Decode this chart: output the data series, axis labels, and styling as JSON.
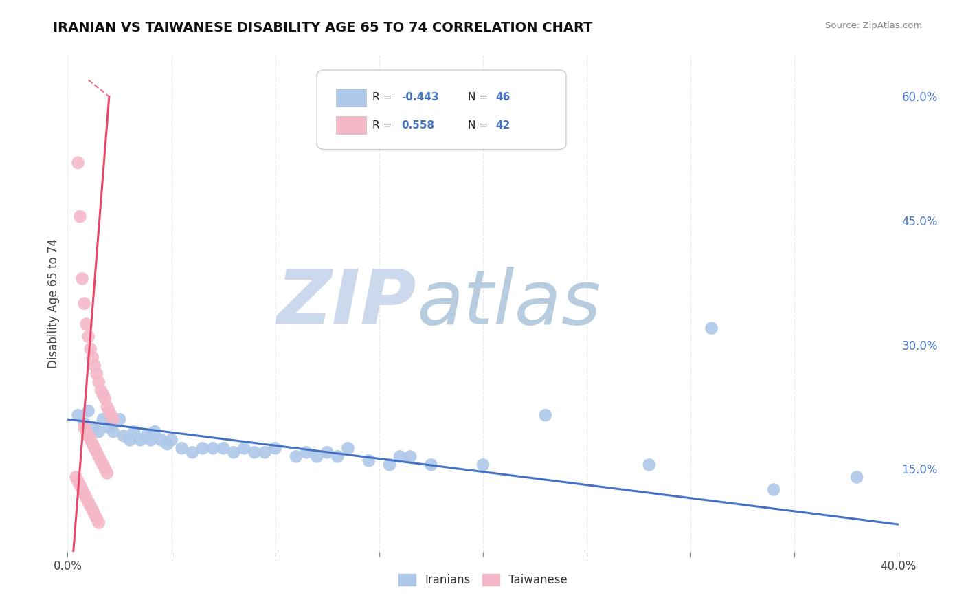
{
  "title": "IRANIAN VS TAIWANESE DISABILITY AGE 65 TO 74 CORRELATION CHART",
  "source_text": "Source: ZipAtlas.com",
  "ylabel": "Disability Age 65 to 74",
  "xlim": [
    0.0,
    0.4
  ],
  "ylim": [
    0.05,
    0.65
  ],
  "iranian_R": -0.443,
  "iranian_N": 46,
  "taiwanese_R": 0.558,
  "taiwanese_N": 42,
  "iranian_color": "#adc8e8",
  "taiwanese_color": "#f4b8c8",
  "iranian_line_color": "#4472c4",
  "taiwanese_line_color": "#e8476a",
  "watermark_zip_color": "#c8d8ec",
  "watermark_atlas_color": "#c0d4e8",
  "background_color": "#ffffff",
  "grid_color": "#c8d4e0",
  "iranian_dots": [
    [
      0.005,
      0.215
    ],
    [
      0.008,
      0.205
    ],
    [
      0.01,
      0.22
    ],
    [
      0.012,
      0.2
    ],
    [
      0.015,
      0.195
    ],
    [
      0.017,
      0.21
    ],
    [
      0.02,
      0.2
    ],
    [
      0.022,
      0.195
    ],
    [
      0.025,
      0.21
    ],
    [
      0.027,
      0.19
    ],
    [
      0.03,
      0.185
    ],
    [
      0.032,
      0.195
    ],
    [
      0.035,
      0.185
    ],
    [
      0.038,
      0.19
    ],
    [
      0.04,
      0.185
    ],
    [
      0.042,
      0.195
    ],
    [
      0.045,
      0.185
    ],
    [
      0.048,
      0.18
    ],
    [
      0.05,
      0.185
    ],
    [
      0.055,
      0.175
    ],
    [
      0.06,
      0.17
    ],
    [
      0.065,
      0.175
    ],
    [
      0.07,
      0.175
    ],
    [
      0.075,
      0.175
    ],
    [
      0.08,
      0.17
    ],
    [
      0.085,
      0.175
    ],
    [
      0.09,
      0.17
    ],
    [
      0.095,
      0.17
    ],
    [
      0.1,
      0.175
    ],
    [
      0.11,
      0.165
    ],
    [
      0.115,
      0.17
    ],
    [
      0.12,
      0.165
    ],
    [
      0.125,
      0.17
    ],
    [
      0.13,
      0.165
    ],
    [
      0.135,
      0.175
    ],
    [
      0.145,
      0.16
    ],
    [
      0.155,
      0.155
    ],
    [
      0.16,
      0.165
    ],
    [
      0.165,
      0.165
    ],
    [
      0.175,
      0.155
    ],
    [
      0.2,
      0.155
    ],
    [
      0.23,
      0.215
    ],
    [
      0.28,
      0.155
    ],
    [
      0.34,
      0.125
    ],
    [
      0.38,
      0.14
    ],
    [
      0.31,
      0.32
    ]
  ],
  "taiwanese_dots": [
    [
      0.005,
      0.52
    ],
    [
      0.006,
      0.455
    ],
    [
      0.007,
      0.38
    ],
    [
      0.008,
      0.35
    ],
    [
      0.009,
      0.325
    ],
    [
      0.01,
      0.31
    ],
    [
      0.011,
      0.295
    ],
    [
      0.012,
      0.285
    ],
    [
      0.013,
      0.275
    ],
    [
      0.014,
      0.265
    ],
    [
      0.015,
      0.255
    ],
    [
      0.016,
      0.245
    ],
    [
      0.017,
      0.24
    ],
    [
      0.018,
      0.235
    ],
    [
      0.019,
      0.225
    ],
    [
      0.02,
      0.22
    ],
    [
      0.021,
      0.215
    ],
    [
      0.022,
      0.21
    ],
    [
      0.008,
      0.2
    ],
    [
      0.009,
      0.195
    ],
    [
      0.01,
      0.19
    ],
    [
      0.011,
      0.185
    ],
    [
      0.012,
      0.18
    ],
    [
      0.013,
      0.175
    ],
    [
      0.014,
      0.17
    ],
    [
      0.015,
      0.165
    ],
    [
      0.016,
      0.16
    ],
    [
      0.017,
      0.155
    ],
    [
      0.018,
      0.15
    ],
    [
      0.019,
      0.145
    ],
    [
      0.004,
      0.14
    ],
    [
      0.005,
      0.135
    ],
    [
      0.006,
      0.13
    ],
    [
      0.007,
      0.125
    ],
    [
      0.008,
      0.12
    ],
    [
      0.009,
      0.115
    ],
    [
      0.01,
      0.11
    ],
    [
      0.011,
      0.105
    ],
    [
      0.012,
      0.1
    ],
    [
      0.013,
      0.095
    ],
    [
      0.014,
      0.09
    ],
    [
      0.015,
      0.085
    ]
  ]
}
